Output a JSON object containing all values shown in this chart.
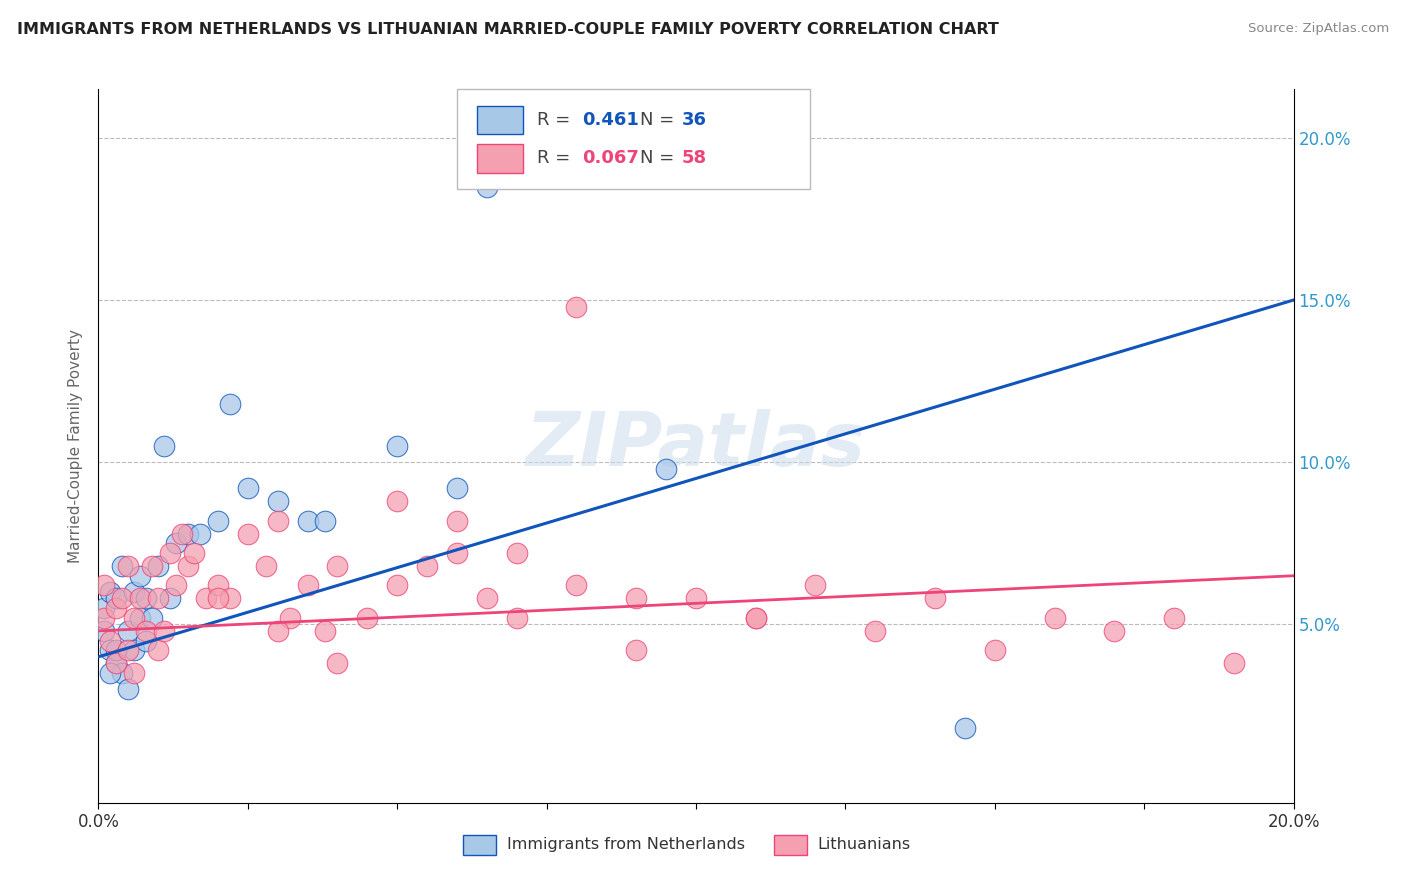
{
  "title": "IMMIGRANTS FROM NETHERLANDS VS LITHUANIAN MARRIED-COUPLE FAMILY POVERTY CORRELATION CHART",
  "source": "Source: ZipAtlas.com",
  "ylabel": "Married-Couple Family Poverty",
  "legend_label1": "Immigrants from Netherlands",
  "legend_label2": "Lithuanians",
  "R1": "0.461",
  "N1": "36",
  "R2": "0.067",
  "N2": "58",
  "color_blue": "#A8C8E8",
  "color_pink": "#F4A0B0",
  "line_color_blue": "#1155BB",
  "line_color_pink": "#EE4477",
  "watermark": "ZIPatlas",
  "background_color": "#FFFFFF",
  "grid_color": "#BBBBBB",
  "xlim": [
    0.0,
    0.2
  ],
  "ylim": [
    -0.005,
    0.215
  ],
  "blue_x": [
    0.001,
    0.001,
    0.002,
    0.002,
    0.003,
    0.003,
    0.004,
    0.004,
    0.005,
    0.005,
    0.006,
    0.006,
    0.007,
    0.007,
    0.008,
    0.008,
    0.009,
    0.01,
    0.011,
    0.012,
    0.013,
    0.015,
    0.017,
    0.02,
    0.022,
    0.025,
    0.03,
    0.035,
    0.038,
    0.05,
    0.06,
    0.065,
    0.095,
    0.145,
    0.002,
    0.003
  ],
  "blue_y": [
    0.048,
    0.055,
    0.042,
    0.06,
    0.038,
    0.058,
    0.035,
    0.068,
    0.03,
    0.048,
    0.042,
    0.06,
    0.052,
    0.065,
    0.045,
    0.058,
    0.052,
    0.068,
    0.105,
    0.058,
    0.075,
    0.078,
    0.078,
    0.082,
    0.118,
    0.092,
    0.088,
    0.082,
    0.082,
    0.105,
    0.092,
    0.185,
    0.098,
    0.018,
    0.035,
    0.042
  ],
  "pink_x": [
    0.001,
    0.001,
    0.002,
    0.003,
    0.003,
    0.004,
    0.005,
    0.005,
    0.006,
    0.006,
    0.007,
    0.008,
    0.009,
    0.01,
    0.01,
    0.011,
    0.012,
    0.013,
    0.014,
    0.015,
    0.016,
    0.018,
    0.02,
    0.022,
    0.025,
    0.028,
    0.03,
    0.032,
    0.035,
    0.038,
    0.04,
    0.045,
    0.05,
    0.055,
    0.06,
    0.065,
    0.07,
    0.08,
    0.09,
    0.1,
    0.11,
    0.12,
    0.13,
    0.14,
    0.15,
    0.16,
    0.17,
    0.18,
    0.19,
    0.05,
    0.06,
    0.07,
    0.08,
    0.09,
    0.11,
    0.04,
    0.03,
    0.02
  ],
  "pink_y": [
    0.052,
    0.062,
    0.045,
    0.055,
    0.038,
    0.058,
    0.042,
    0.068,
    0.052,
    0.035,
    0.058,
    0.048,
    0.068,
    0.058,
    0.042,
    0.048,
    0.072,
    0.062,
    0.078,
    0.068,
    0.072,
    0.058,
    0.062,
    0.058,
    0.078,
    0.068,
    0.082,
    0.052,
    0.062,
    0.048,
    0.068,
    0.052,
    0.062,
    0.068,
    0.072,
    0.058,
    0.052,
    0.062,
    0.042,
    0.058,
    0.052,
    0.062,
    0.048,
    0.058,
    0.042,
    0.052,
    0.048,
    0.052,
    0.038,
    0.088,
    0.082,
    0.072,
    0.148,
    0.058,
    0.052,
    0.038,
    0.048,
    0.058
  ]
}
